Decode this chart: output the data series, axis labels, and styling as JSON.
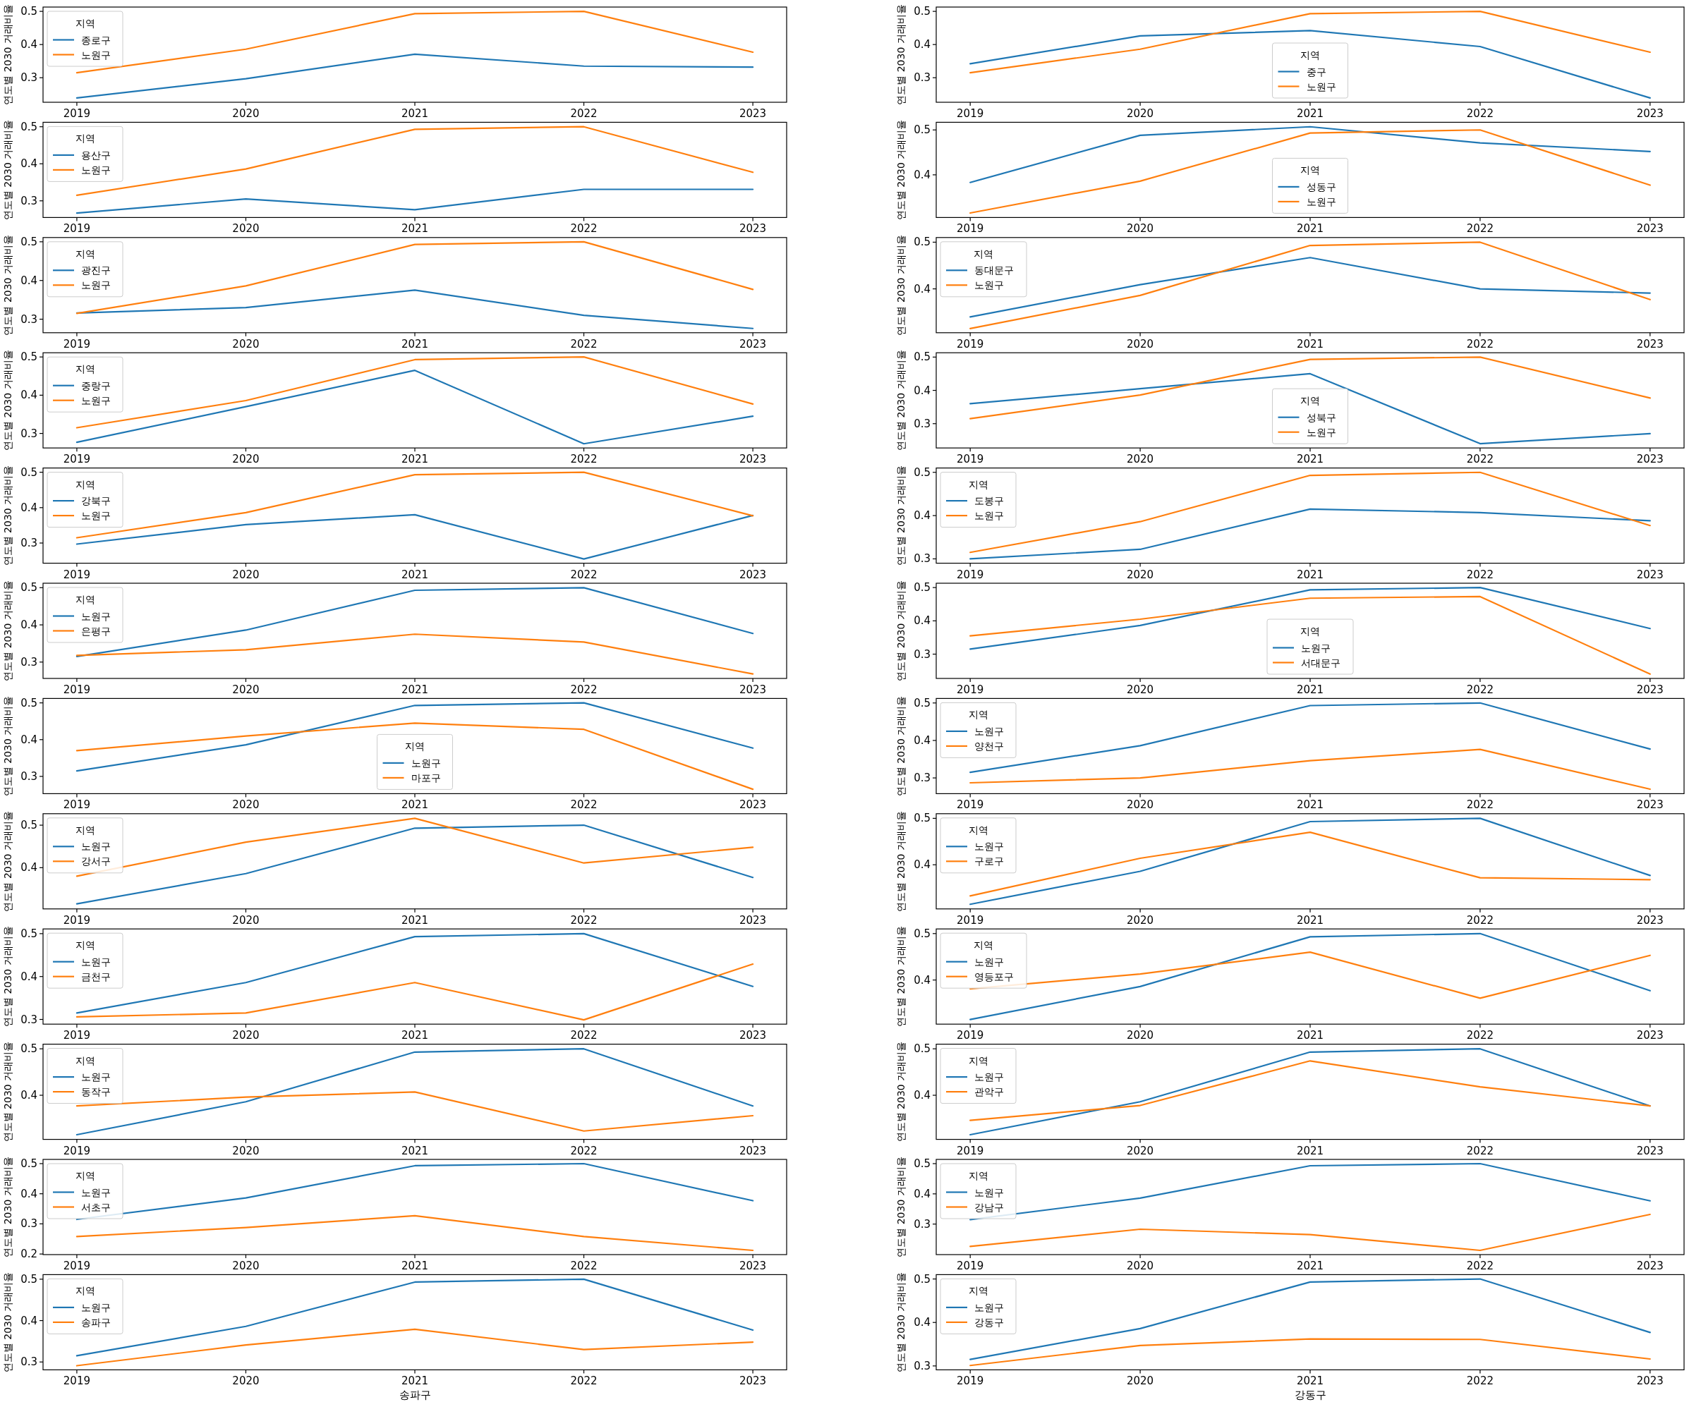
{
  "chart_data": [
    {
      "type": "line",
      "x": [
        2019,
        2020,
        2021,
        2022,
        2023
      ],
      "xlim": [
        2018.8,
        2023.2
      ],
      "xticks": [
        2019,
        2020,
        2021,
        2022,
        2023
      ],
      "ylim": [
        0.226,
        0.513
      ],
      "yticks": [
        0.3,
        0.4,
        0.5
      ],
      "ylabel": "연도별 2030 거래비율",
      "legend_title": "지역",
      "legend": "top left",
      "series": [
        {
          "name": "종로구",
          "color": "#1f77b4",
          "values": [
            0.239,
            0.297,
            0.371,
            0.335,
            0.332
          ]
        },
        {
          "name": "노원구",
          "color": "#ff7f0e",
          "values": [
            0.315,
            0.386,
            0.493,
            0.5,
            0.377
          ]
        }
      ]
    },
    {
      "type": "line",
      "x": [
        2019,
        2020,
        2021,
        2022,
        2023
      ],
      "xlim": [
        2018.8,
        2023.2
      ],
      "xticks": [
        2019,
        2020,
        2021,
        2022,
        2023
      ],
      "ylim": [
        0.226,
        0.513
      ],
      "yticks": [
        0.3,
        0.4,
        0.5
      ],
      "ylabel": "연도별 2030 거래비율",
      "legend_title": "지역",
      "legend": "bottom",
      "series": [
        {
          "name": "중구",
          "color": "#1f77b4",
          "values": [
            0.342,
            0.426,
            0.442,
            0.394,
            0.239
          ]
        },
        {
          "name": "노원구",
          "color": "#ff7f0e",
          "values": [
            0.315,
            0.386,
            0.493,
            0.5,
            0.377
          ]
        }
      ]
    },
    {
      "type": "line",
      "x": [
        2019,
        2020,
        2021,
        2022,
        2023
      ],
      "xlim": [
        2018.8,
        2023.2
      ],
      "xticks": [
        2019,
        2020,
        2021,
        2022,
        2023
      ],
      "ylim": [
        0.255,
        0.512
      ],
      "yticks": [
        0.3,
        0.4,
        0.5
      ],
      "ylabel": "연도별 2030 거래비율",
      "legend_title": "지역",
      "legend": "top left",
      "series": [
        {
          "name": "용산구",
          "color": "#1f77b4",
          "values": [
            0.267,
            0.305,
            0.276,
            0.331,
            0.331
          ]
        },
        {
          "name": "노원구",
          "color": "#ff7f0e",
          "values": [
            0.315,
            0.386,
            0.493,
            0.5,
            0.377
          ]
        }
      ]
    },
    {
      "type": "line",
      "x": [
        2019,
        2020,
        2021,
        2022,
        2023
      ],
      "xlim": [
        2018.8,
        2023.2
      ],
      "xticks": [
        2019,
        2020,
        2021,
        2022,
        2023
      ],
      "ylim": [
        0.305,
        0.517
      ],
      "yticks": [
        0.4,
        0.5
      ],
      "ylabel": "연도별 2030 거래비율",
      "legend_title": "지역",
      "legend": "bottom",
      "series": [
        {
          "name": "성동구",
          "color": "#1f77b4",
          "values": [
            0.383,
            0.488,
            0.507,
            0.471,
            0.452
          ]
        },
        {
          "name": "노원구",
          "color": "#ff7f0e",
          "values": [
            0.315,
            0.386,
            0.493,
            0.5,
            0.377
          ]
        }
      ]
    },
    {
      "type": "line",
      "x": [
        2019,
        2020,
        2021,
        2022,
        2023
      ],
      "xlim": [
        2018.8,
        2023.2
      ],
      "xticks": [
        2019,
        2020,
        2021,
        2022,
        2023
      ],
      "ylim": [
        0.265,
        0.511
      ],
      "yticks": [
        0.3,
        0.4,
        0.5
      ],
      "ylabel": "연도별 2030 거래비율",
      "legend_title": "지역",
      "legend": "top left",
      "series": [
        {
          "name": "광진구",
          "color": "#1f77b4",
          "values": [
            0.316,
            0.33,
            0.375,
            0.31,
            0.276
          ]
        },
        {
          "name": "노원구",
          "color": "#ff7f0e",
          "values": [
            0.315,
            0.386,
            0.493,
            0.5,
            0.377
          ]
        }
      ]
    },
    {
      "type": "line",
      "x": [
        2019,
        2020,
        2021,
        2022,
        2023
      ],
      "xlim": [
        2018.8,
        2023.2
      ],
      "xticks": [
        2019,
        2020,
        2021,
        2022,
        2023
      ],
      "ylim": [
        0.306,
        0.51
      ],
      "yticks": [
        0.4,
        0.5
      ],
      "ylabel": "연도별 2030 거래비율",
      "legend_title": "지역",
      "legend": "top left",
      "series": [
        {
          "name": "동대문구",
          "color": "#1f77b4",
          "values": [
            0.34,
            0.409,
            0.467,
            0.4,
            0.391
          ]
        },
        {
          "name": "노원구",
          "color": "#ff7f0e",
          "values": [
            0.315,
            0.386,
            0.493,
            0.5,
            0.377
          ]
        }
      ]
    },
    {
      "type": "line",
      "x": [
        2019,
        2020,
        2021,
        2022,
        2023
      ],
      "xlim": [
        2018.8,
        2023.2
      ],
      "xticks": [
        2019,
        2020,
        2021,
        2022,
        2023
      ],
      "ylim": [
        0.262,
        0.511
      ],
      "yticks": [
        0.3,
        0.4,
        0.5
      ],
      "ylabel": "연도별 2030 거래비율",
      "legend_title": "지역",
      "legend": "top left",
      "series": [
        {
          "name": "중랑구",
          "color": "#1f77b4",
          "values": [
            0.277,
            0.37,
            0.465,
            0.273,
            0.345
          ]
        },
        {
          "name": "노원구",
          "color": "#ff7f0e",
          "values": [
            0.315,
            0.386,
            0.493,
            0.5,
            0.377
          ]
        }
      ]
    },
    {
      "type": "line",
      "x": [
        2019,
        2020,
        2021,
        2022,
        2023
      ],
      "xlim": [
        2018.8,
        2023.2
      ],
      "xticks": [
        2019,
        2020,
        2021,
        2022,
        2023
      ],
      "ylim": [
        0.227,
        0.513
      ],
      "yticks": [
        0.3,
        0.4,
        0.5
      ],
      "ylabel": "연도별 2030 거래비율",
      "legend_title": "지역",
      "legend": "bottom",
      "series": [
        {
          "name": "성북구",
          "color": "#1f77b4",
          "values": [
            0.36,
            0.405,
            0.45,
            0.24,
            0.27
          ]
        },
        {
          "name": "노원구",
          "color": "#ff7f0e",
          "values": [
            0.315,
            0.386,
            0.493,
            0.5,
            0.377
          ]
        }
      ]
    },
    {
      "type": "line",
      "x": [
        2019,
        2020,
        2021,
        2022,
        2023
      ],
      "xlim": [
        2018.8,
        2023.2
      ],
      "xticks": [
        2019,
        2020,
        2021,
        2022,
        2023
      ],
      "ylim": [
        0.243,
        0.512
      ],
      "yticks": [
        0.3,
        0.4,
        0.5
      ],
      "ylabel": "연도별 2030 거래비율",
      "legend_title": "지역",
      "legend": "top left",
      "series": [
        {
          "name": "강북구",
          "color": "#1f77b4",
          "values": [
            0.297,
            0.352,
            0.38,
            0.255,
            0.378
          ]
        },
        {
          "name": "노원구",
          "color": "#ff7f0e",
          "values": [
            0.315,
            0.386,
            0.493,
            0.5,
            0.377
          ]
        }
      ]
    },
    {
      "type": "line",
      "x": [
        2019,
        2020,
        2021,
        2022,
        2023
      ],
      "xlim": [
        2018.8,
        2023.2
      ],
      "xticks": [
        2019,
        2020,
        2021,
        2022,
        2023
      ],
      "ylim": [
        0.29,
        0.51
      ],
      "yticks": [
        0.3,
        0.4,
        0.5
      ],
      "ylabel": "연도별 2030 거래비율",
      "legend_title": "지역",
      "legend": "top left",
      "series": [
        {
          "name": "도봉구",
          "color": "#1f77b4",
          "values": [
            0.3,
            0.322,
            0.415,
            0.407,
            0.388
          ]
        },
        {
          "name": "노원구",
          "color": "#ff7f0e",
          "values": [
            0.315,
            0.386,
            0.493,
            0.5,
            0.377
          ]
        }
      ]
    },
    {
      "type": "line",
      "x": [
        2019,
        2020,
        2021,
        2022,
        2023
      ],
      "xlim": [
        2018.8,
        2023.2
      ],
      "xticks": [
        2019,
        2020,
        2021,
        2022,
        2023
      ],
      "ylim": [
        0.256,
        0.512
      ],
      "yticks": [
        0.3,
        0.4,
        0.5
      ],
      "ylabel": "연도별 2030 거래비율",
      "legend_title": "지역",
      "legend": "top left",
      "series": [
        {
          "name": "노원구",
          "color": "#1f77b4",
          "values": [
            0.315,
            0.386,
            0.493,
            0.5,
            0.377
          ]
        },
        {
          "name": "은평구",
          "color": "#ff7f0e",
          "values": [
            0.318,
            0.333,
            0.375,
            0.354,
            0.268
          ]
        }
      ]
    },
    {
      "type": "line",
      "x": [
        2019,
        2020,
        2021,
        2022,
        2023
      ],
      "xlim": [
        2018.8,
        2023.2
      ],
      "xticks": [
        2019,
        2020,
        2021,
        2022,
        2023
      ],
      "ylim": [
        0.227,
        0.513
      ],
      "yticks": [
        0.3,
        0.4,
        0.5
      ],
      "ylabel": "연도별 2030 거래비율",
      "legend_title": "지역",
      "legend": "bottom",
      "series": [
        {
          "name": "노원구",
          "color": "#1f77b4",
          "values": [
            0.315,
            0.386,
            0.493,
            0.5,
            0.377
          ]
        },
        {
          "name": "서대문구",
          "color": "#ff7f0e",
          "values": [
            0.355,
            0.405,
            0.468,
            0.473,
            0.24
          ]
        }
      ]
    },
    {
      "type": "line",
      "x": [
        2019,
        2020,
        2021,
        2022,
        2023
      ],
      "xlim": [
        2018.8,
        2023.2
      ],
      "xticks": [
        2019,
        2020,
        2021,
        2022,
        2023
      ],
      "ylim": [
        0.253,
        0.512
      ],
      "yticks": [
        0.3,
        0.4,
        0.5
      ],
      "ylabel": "연도별 2030 거래비율",
      "legend_title": "지역",
      "legend": "bottom",
      "series": [
        {
          "name": "노원구",
          "color": "#1f77b4",
          "values": [
            0.315,
            0.386,
            0.493,
            0.5,
            0.377
          ]
        },
        {
          "name": "마포구",
          "color": "#ff7f0e",
          "values": [
            0.37,
            0.41,
            0.445,
            0.428,
            0.265
          ]
        }
      ]
    },
    {
      "type": "line",
      "x": [
        2019,
        2020,
        2021,
        2022,
        2023
      ],
      "xlim": [
        2018.8,
        2023.2
      ],
      "xticks": [
        2019,
        2020,
        2021,
        2022,
        2023
      ],
      "ylim": [
        0.258,
        0.512
      ],
      "yticks": [
        0.3,
        0.4,
        0.5
      ],
      "ylabel": "연도별 2030 거래비율",
      "legend_title": "지역",
      "legend": "top left",
      "series": [
        {
          "name": "노원구",
          "color": "#1f77b4",
          "values": [
            0.315,
            0.386,
            0.493,
            0.5,
            0.377
          ]
        },
        {
          "name": "양천구",
          "color": "#ff7f0e",
          "values": [
            0.287,
            0.3,
            0.346,
            0.376,
            0.27
          ]
        }
      ]
    },
    {
      "type": "line",
      "x": [
        2019,
        2020,
        2021,
        2022,
        2023
      ],
      "xlim": [
        2018.8,
        2023.2
      ],
      "xticks": [
        2019,
        2020,
        2021,
        2022,
        2023
      ],
      "ylim": [
        0.303,
        0.527
      ],
      "yticks": [
        0.4,
        0.5
      ],
      "ylabel": "연도별 2030 거래비율",
      "legend_title": "지역",
      "legend": "top left",
      "series": [
        {
          "name": "노원구",
          "color": "#1f77b4",
          "values": [
            0.315,
            0.386,
            0.493,
            0.5,
            0.377
          ]
        },
        {
          "name": "강서구",
          "color": "#ff7f0e",
          "values": [
            0.38,
            0.46,
            0.516,
            0.411,
            0.448
          ]
        }
      ]
    },
    {
      "type": "line",
      "x": [
        2019,
        2020,
        2021,
        2022,
        2023
      ],
      "xlim": [
        2018.8,
        2023.2
      ],
      "xticks": [
        2019,
        2020,
        2021,
        2022,
        2023
      ],
      "ylim": [
        0.305,
        0.51
      ],
      "yticks": [
        0.4,
        0.5
      ],
      "ylabel": "연도별 2030 거래비율",
      "legend_title": "지역",
      "legend": "top left",
      "series": [
        {
          "name": "노원구",
          "color": "#1f77b4",
          "values": [
            0.315,
            0.386,
            0.493,
            0.5,
            0.377
          ]
        },
        {
          "name": "구로구",
          "color": "#ff7f0e",
          "values": [
            0.333,
            0.414,
            0.47,
            0.372,
            0.368
          ]
        }
      ]
    },
    {
      "type": "line",
      "x": [
        2019,
        2020,
        2021,
        2022,
        2023
      ],
      "xlim": [
        2018.8,
        2023.2
      ],
      "xticks": [
        2019,
        2020,
        2021,
        2022,
        2023
      ],
      "ylim": [
        0.289,
        0.511
      ],
      "yticks": [
        0.3,
        0.4,
        0.5
      ],
      "ylabel": "연도별 2030 거래비율",
      "legend_title": "지역",
      "legend": "top left",
      "series": [
        {
          "name": "노원구",
          "color": "#1f77b4",
          "values": [
            0.315,
            0.386,
            0.493,
            0.5,
            0.377
          ]
        },
        {
          "name": "금천구",
          "color": "#ff7f0e",
          "values": [
            0.306,
            0.315,
            0.386,
            0.299,
            0.429
          ]
        }
      ]
    },
    {
      "type": "line",
      "x": [
        2019,
        2020,
        2021,
        2022,
        2023
      ],
      "xlim": [
        2018.8,
        2023.2
      ],
      "xticks": [
        2019,
        2020,
        2021,
        2022,
        2023
      ],
      "ylim": [
        0.305,
        0.51
      ],
      "yticks": [
        0.4,
        0.5
      ],
      "ylabel": "연도별 2030 거래비율",
      "legend_title": "지역",
      "legend": "top left",
      "series": [
        {
          "name": "노원구",
          "color": "#1f77b4",
          "values": [
            0.315,
            0.386,
            0.493,
            0.5,
            0.377
          ]
        },
        {
          "name": "영등포구",
          "color": "#ff7f0e",
          "values": [
            0.381,
            0.413,
            0.46,
            0.361,
            0.453
          ]
        }
      ]
    },
    {
      "type": "line",
      "x": [
        2019,
        2020,
        2021,
        2022,
        2023
      ],
      "xlim": [
        2018.8,
        2023.2
      ],
      "xticks": [
        2019,
        2020,
        2021,
        2022,
        2023
      ],
      "ylim": [
        0.305,
        0.51
      ],
      "yticks": [
        0.4,
        0.5
      ],
      "ylabel": "연도별 2030 거래비율",
      "legend_title": "지역",
      "legend": "top left",
      "series": [
        {
          "name": "노원구",
          "color": "#1f77b4",
          "values": [
            0.315,
            0.386,
            0.493,
            0.5,
            0.377
          ]
        },
        {
          "name": "동작구",
          "color": "#ff7f0e",
          "values": [
            0.377,
            0.396,
            0.407,
            0.323,
            0.356
          ]
        }
      ]
    },
    {
      "type": "line",
      "x": [
        2019,
        2020,
        2021,
        2022,
        2023
      ],
      "xlim": [
        2018.8,
        2023.2
      ],
      "xticks": [
        2019,
        2020,
        2021,
        2022,
        2023
      ],
      "ylim": [
        0.305,
        0.51
      ],
      "yticks": [
        0.4,
        0.5
      ],
      "ylabel": "연도별 2030 거래비율",
      "legend_title": "지역",
      "legend": "top left",
      "series": [
        {
          "name": "노원구",
          "color": "#1f77b4",
          "values": [
            0.315,
            0.386,
            0.493,
            0.5,
            0.377
          ]
        },
        {
          "name": "관악구",
          "color": "#ff7f0e",
          "values": [
            0.346,
            0.378,
            0.474,
            0.418,
            0.377
          ]
        }
      ]
    },
    {
      "type": "line",
      "x": [
        2019,
        2020,
        2021,
        2022,
        2023
      ],
      "xlim": [
        2018.8,
        2023.2
      ],
      "xticks": [
        2019,
        2020,
        2021,
        2022,
        2023
      ],
      "ylim": [
        0.198,
        0.514
      ],
      "yticks": [
        0.2,
        0.3,
        0.4,
        0.5
      ],
      "ylabel": "연도별 2030 거래비율",
      "legend_title": "지역",
      "legend": "top left",
      "series": [
        {
          "name": "노원구",
          "color": "#1f77b4",
          "values": [
            0.315,
            0.386,
            0.493,
            0.5,
            0.377
          ]
        },
        {
          "name": "서초구",
          "color": "#ff7f0e",
          "values": [
            0.258,
            0.288,
            0.327,
            0.258,
            0.212
          ]
        }
      ]
    },
    {
      "type": "line",
      "x": [
        2019,
        2020,
        2021,
        2022,
        2023
      ],
      "xlim": [
        2018.8,
        2023.2
      ],
      "xticks": [
        2019,
        2020,
        2021,
        2022,
        2023
      ],
      "ylim": [
        0.199,
        0.514
      ],
      "yticks": [
        0.3,
        0.4,
        0.5
      ],
      "ylabel": "연도별 2030 거래비율",
      "legend_title": "지역",
      "legend": "top left",
      "series": [
        {
          "name": "노원구",
          "color": "#1f77b4",
          "values": [
            0.315,
            0.386,
            0.493,
            0.5,
            0.377
          ]
        },
        {
          "name": "강남구",
          "color": "#ff7f0e",
          "values": [
            0.226,
            0.283,
            0.265,
            0.213,
            0.332
          ]
        }
      ]
    },
    {
      "type": "line",
      "x": [
        2019,
        2020,
        2021,
        2022,
        2023
      ],
      "xlim": [
        2018.8,
        2023.2
      ],
      "xticks": [
        2019,
        2020,
        2021,
        2022,
        2023
      ],
      "ylim": [
        0.281,
        0.511
      ],
      "yticks": [
        0.3,
        0.4,
        0.5
      ],
      "xlabel": "송파구",
      "ylabel": "연도별 2030 거래비율",
      "legend_title": "지역",
      "legend": "top left",
      "series": [
        {
          "name": "노원구",
          "color": "#1f77b4",
          "values": [
            0.315,
            0.386,
            0.493,
            0.5,
            0.377
          ]
        },
        {
          "name": "송파구",
          "color": "#ff7f0e",
          "values": [
            0.291,
            0.341,
            0.379,
            0.33,
            0.348
          ]
        }
      ]
    },
    {
      "type": "line",
      "x": [
        2019,
        2020,
        2021,
        2022,
        2023
      ],
      "xlim": [
        2018.8,
        2023.2
      ],
      "xticks": [
        2019,
        2020,
        2021,
        2022,
        2023
      ],
      "ylim": [
        0.291,
        0.51
      ],
      "yticks": [
        0.3,
        0.4,
        0.5
      ],
      "xlabel": "강동구",
      "ylabel": "연도별 2030 거래비율",
      "legend_title": "지역",
      "legend": "top left",
      "series": [
        {
          "name": "노원구",
          "color": "#1f77b4",
          "values": [
            0.315,
            0.386,
            0.493,
            0.5,
            0.377
          ]
        },
        {
          "name": "강동구",
          "color": "#ff7f0e",
          "values": [
            0.301,
            0.347,
            0.362,
            0.361,
            0.316
          ]
        }
      ]
    }
  ]
}
